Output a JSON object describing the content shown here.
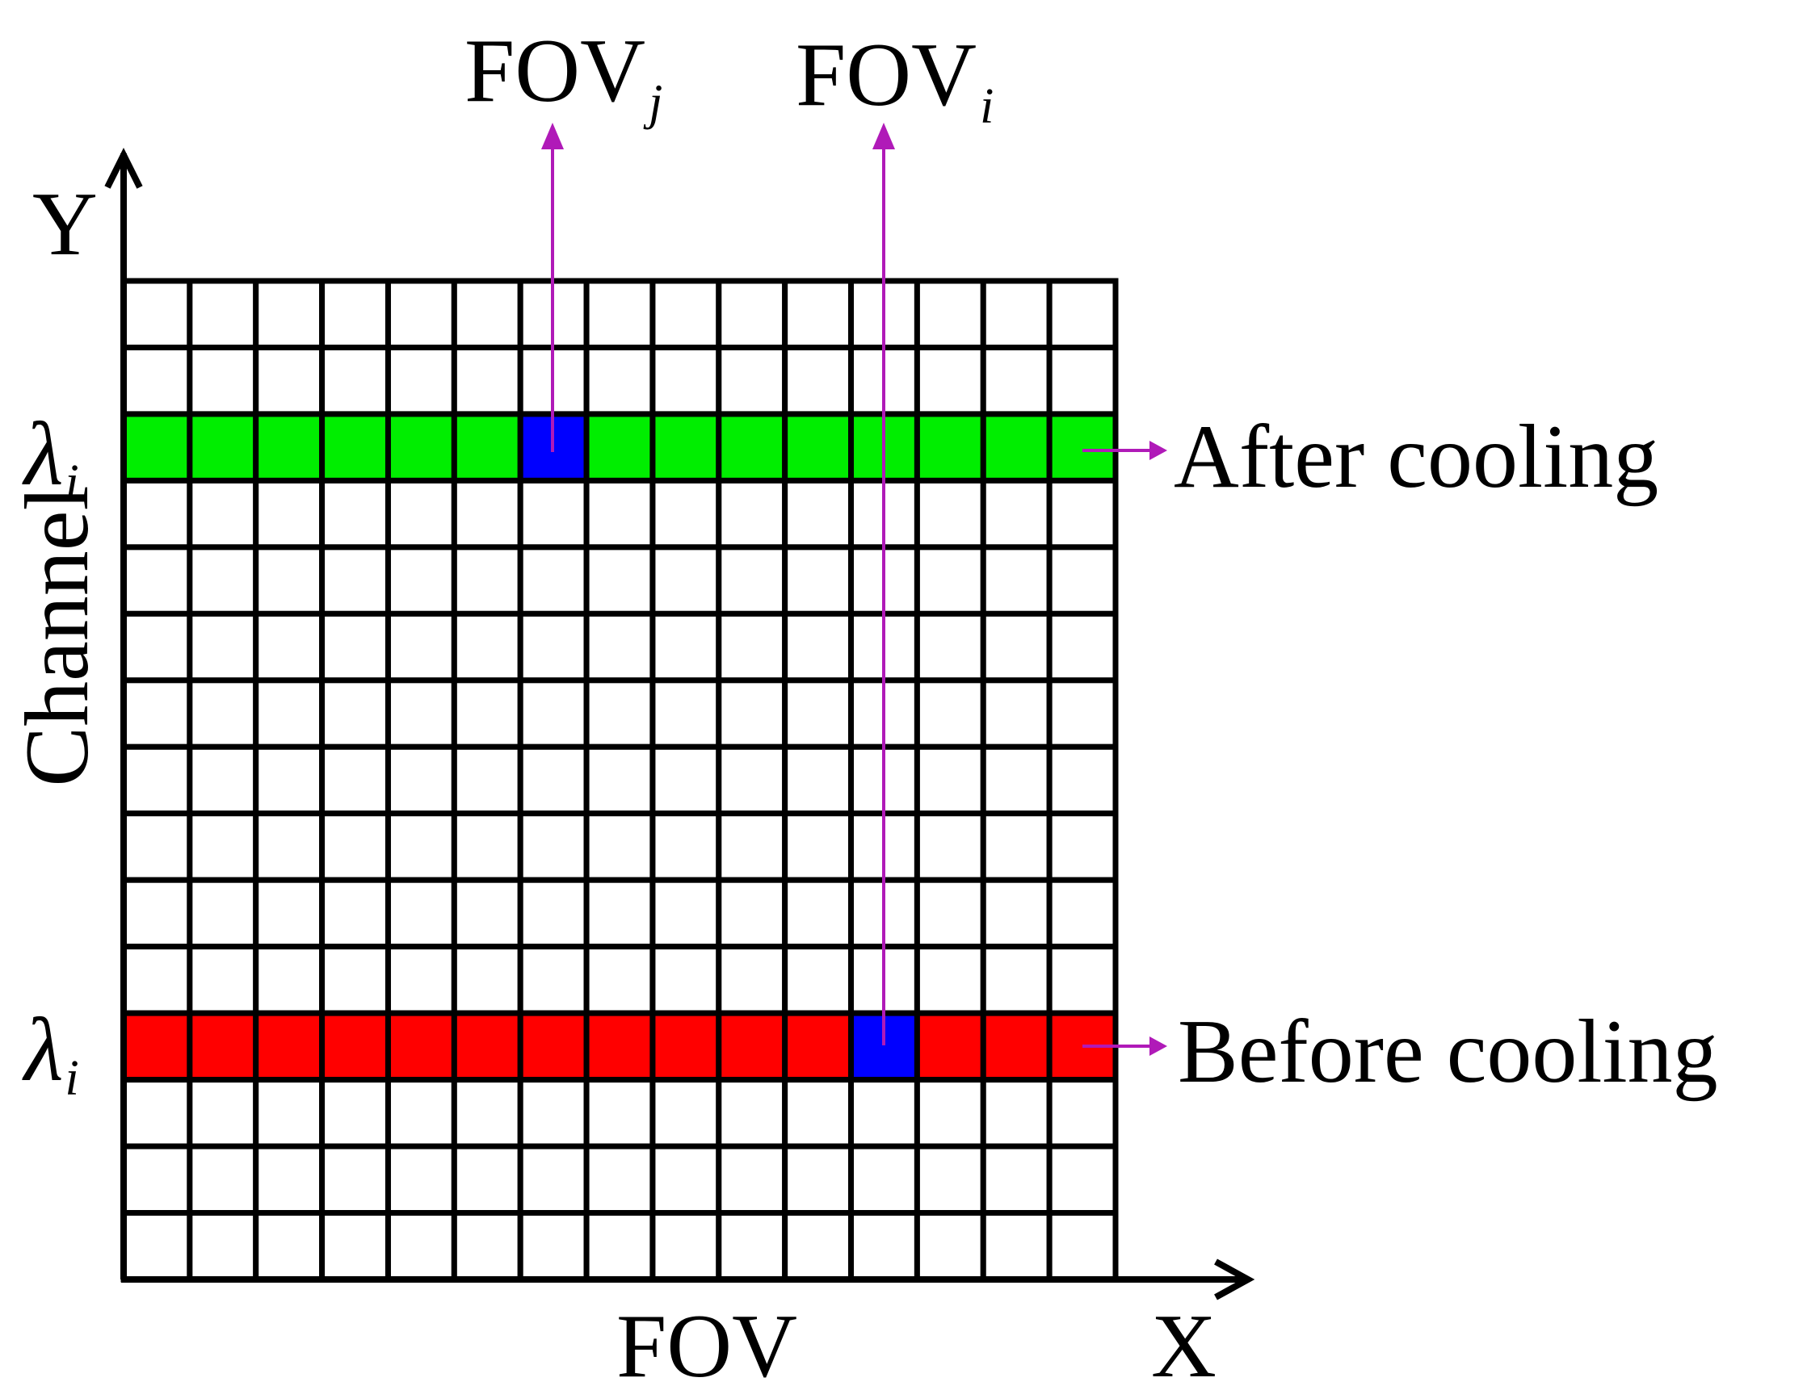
{
  "grid": {
    "cols": 15,
    "rows": 15,
    "cell_fill": "#ffffff",
    "line_color": "#000000"
  },
  "axes": {
    "y_label": "Y",
    "x_label": "X",
    "horizontal_title": "FOV",
    "vertical_title": "Channel"
  },
  "rows_highlight": {
    "after": {
      "row_index": 2,
      "color": "#00ee00",
      "symbol": "λ",
      "subscript": "i",
      "label": "After cooling"
    },
    "before": {
      "row_index": 11,
      "color": "#ff0000",
      "symbol": "λ",
      "subscript": "i",
      "label": "Before cooling"
    }
  },
  "fov_markers": {
    "j": {
      "base": "FOV",
      "subscript": "j",
      "col_index": 6,
      "row_index": 2,
      "color": "#0000ff"
    },
    "i": {
      "base": "FOV",
      "subscript": "i",
      "col_index": 11,
      "row_index": 11,
      "color": "#0000ff"
    }
  },
  "arrow_color": "#b01ab8"
}
